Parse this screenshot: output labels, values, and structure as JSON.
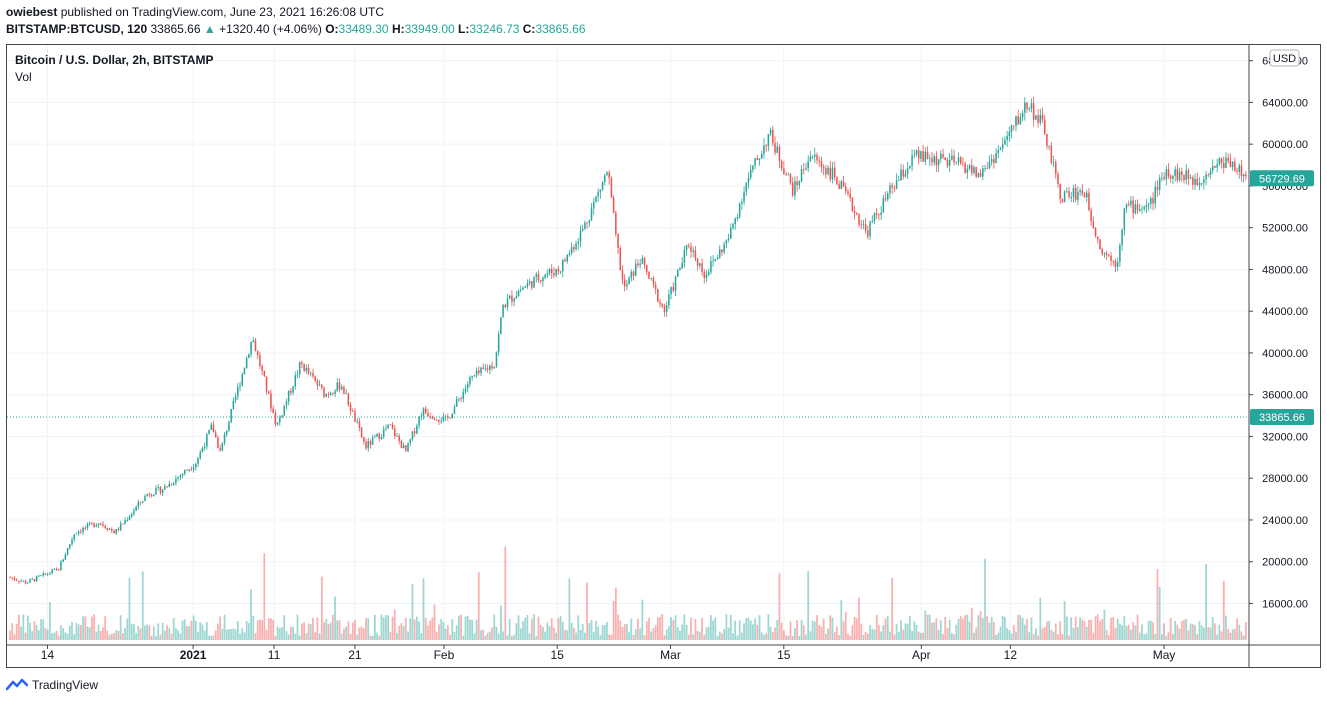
{
  "header": {
    "user": "owiebest",
    "published_text": "published on TradingView.com, June 23, 2021 16:26:08 UTC"
  },
  "ohlc": {
    "symbol": "BITSTAMP:BTCUSD, 120",
    "last": "33865.66",
    "change": "+1320.40 (+4.06%)",
    "o_label": "O:",
    "o": "33489.30",
    "h_label": "H:",
    "h": "33949.00",
    "l_label": "L:",
    "l": "33246.73",
    "c_label": "C:",
    "c": "33865.66",
    "up_arrow": "▲"
  },
  "legend": {
    "title": "Bitcoin / U.S. Dollar, 2h, BITSTAMP",
    "vol": "Vol"
  },
  "price_axis": {
    "currency": "USD",
    "ticks": [
      "68000.00",
      "64000.00",
      "60000.00",
      "56000.00",
      "52000.00",
      "48000.00",
      "44000.00",
      "40000.00",
      "36000.00",
      "32000.00",
      "28000.00",
      "24000.00",
      "20000.00",
      "16000.00"
    ]
  },
  "time_axis": {
    "labels": [
      "14",
      "2021",
      "11",
      "21",
      "Feb",
      "15",
      "Mar",
      "15",
      "Apr",
      "12",
      "May"
    ]
  },
  "markers": {
    "high_label": "56729.69",
    "last_label": "33865.66"
  },
  "footer": {
    "brand": "TradingView"
  },
  "colors": {
    "up": "#26a69a",
    "down": "#ef5350",
    "grid": "#f0f3fa",
    "axis_text": "#131722",
    "marker": "#26a69a"
  },
  "chart_data": {
    "type": "candlestick",
    "title": "Bitcoin / U.S. Dollar, 2h, BITSTAMP",
    "ylim": [
      12500,
      69500
    ],
    "y_ticks": [
      68000,
      64000,
      60000,
      56000,
      52000,
      48000,
      44000,
      40000,
      36000,
      32000,
      28000,
      24000,
      20000,
      16000
    ],
    "x_ticks": [
      "14",
      "2021",
      "11",
      "21",
      "Feb",
      "15",
      "Mar",
      "15",
      "Apr",
      "12",
      "May"
    ],
    "last_price": 33865.66,
    "high_marker": 56729.69,
    "price_path": [
      {
        "date": "2020-12-09",
        "price": 18500
      },
      {
        "date": "2020-12-11",
        "price": 18000
      },
      {
        "date": "2020-12-15",
        "price": 19300
      },
      {
        "date": "2020-12-17",
        "price": 22800
      },
      {
        "date": "2020-12-20",
        "price": 23800
      },
      {
        "date": "2020-12-22",
        "price": 22800
      },
      {
        "date": "2020-12-26",
        "price": 26500
      },
      {
        "date": "2020-12-28",
        "price": 27000
      },
      {
        "date": "2021-01-01",
        "price": 29500
      },
      {
        "date": "2021-01-03",
        "price": 33000
      },
      {
        "date": "2021-01-04",
        "price": 30500
      },
      {
        "date": "2021-01-06",
        "price": 36000
      },
      {
        "date": "2021-01-08",
        "price": 41500
      },
      {
        "date": "2021-01-11",
        "price": 33000
      },
      {
        "date": "2021-01-14",
        "price": 39000
      },
      {
        "date": "2021-01-17",
        "price": 36000
      },
      {
        "date": "2021-01-19",
        "price": 37000
      },
      {
        "date": "2021-01-22",
        "price": 31000
      },
      {
        "date": "2021-01-25",
        "price": 33000
      },
      {
        "date": "2021-01-27",
        "price": 30500
      },
      {
        "date": "2021-01-29",
        "price": 34500
      },
      {
        "date": "2021-02-01",
        "price": 33500
      },
      {
        "date": "2021-02-04",
        "price": 37500
      },
      {
        "date": "2021-02-07",
        "price": 39000
      },
      {
        "date": "2021-02-08",
        "price": 44500
      },
      {
        "date": "2021-02-10",
        "price": 46000
      },
      {
        "date": "2021-02-13",
        "price": 47500
      },
      {
        "date": "2021-02-15",
        "price": 48000
      },
      {
        "date": "2021-02-18",
        "price": 52000
      },
      {
        "date": "2021-02-21",
        "price": 57500
      },
      {
        "date": "2021-02-22",
        "price": 51000
      },
      {
        "date": "2021-02-23",
        "price": 46000
      },
      {
        "date": "2021-02-25",
        "price": 49000
      },
      {
        "date": "2021-02-28",
        "price": 44000
      },
      {
        "date": "2021-03-03",
        "price": 50500
      },
      {
        "date": "2021-03-05",
        "price": 47500
      },
      {
        "date": "2021-03-08",
        "price": 51000
      },
      {
        "date": "2021-03-10",
        "price": 56000
      },
      {
        "date": "2021-03-13",
        "price": 61000
      },
      {
        "date": "2021-03-16",
        "price": 55500
      },
      {
        "date": "2021-03-18",
        "price": 59000
      },
      {
        "date": "2021-03-21",
        "price": 57000
      },
      {
        "date": "2021-03-24",
        "price": 53000
      },
      {
        "date": "2021-03-25",
        "price": 51500
      },
      {
        "date": "2021-03-28",
        "price": 55500
      },
      {
        "date": "2021-03-31",
        "price": 58800
      },
      {
        "date": "2021-04-03",
        "price": 58500
      },
      {
        "date": "2021-04-06",
        "price": 58000
      },
      {
        "date": "2021-04-08",
        "price": 57000
      },
      {
        "date": "2021-04-11",
        "price": 60000
      },
      {
        "date": "2021-04-14",
        "price": 64000
      },
      {
        "date": "2021-04-16",
        "price": 61500
      },
      {
        "date": "2021-04-18",
        "price": 55000
      },
      {
        "date": "2021-04-21",
        "price": 55500
      },
      {
        "date": "2021-04-23",
        "price": 50000
      },
      {
        "date": "2021-04-25",
        "price": 48500
      },
      {
        "date": "2021-04-26",
        "price": 54000
      },
      {
        "date": "2021-04-29",
        "price": 54000
      },
      {
        "date": "2021-05-01",
        "price": 57500
      },
      {
        "date": "2021-05-03",
        "price": 57000
      },
      {
        "date": "2021-05-05",
        "price": 56500
      },
      {
        "date": "2021-05-07",
        "price": 58000
      },
      {
        "date": "2021-05-09",
        "price": 58500
      },
      {
        "date": "2021-05-11",
        "price": 56729.69
      }
    ]
  }
}
